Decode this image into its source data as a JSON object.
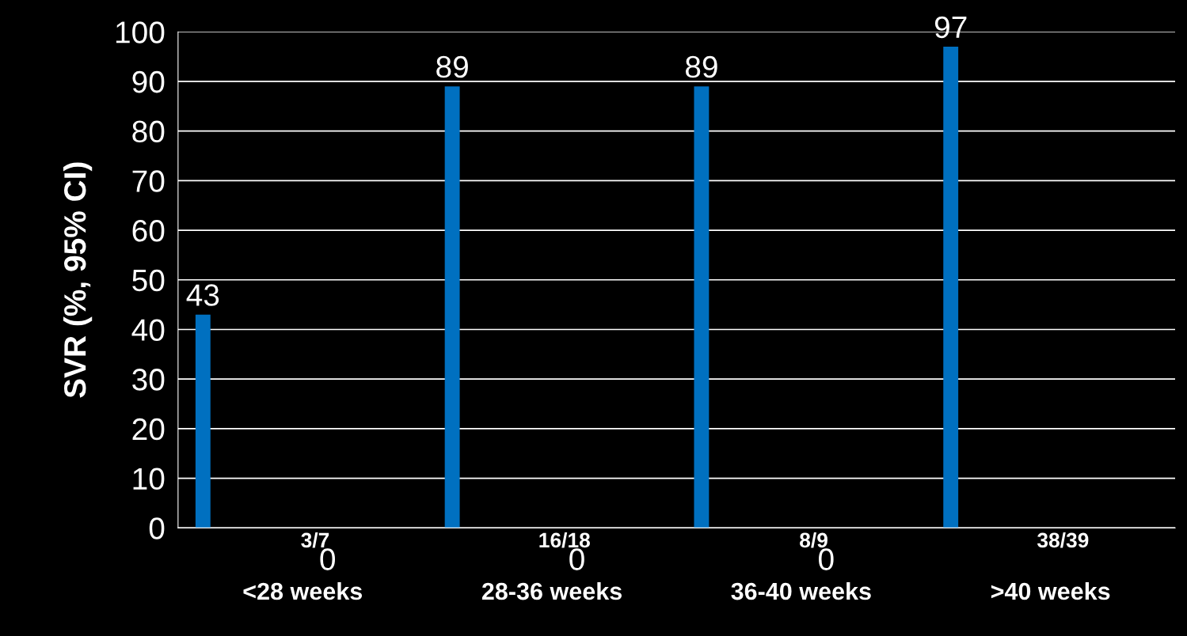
{
  "chart_data": {
    "type": "bar",
    "ylabel": "SVR (%, 95% CI)",
    "categories": [
      "<28 weeks",
      "28-36 weeks",
      "36-40 weeks",
      ">40 weeks"
    ],
    "series": [
      {
        "color": "#0070c0",
        "values": [
          43,
          89,
          89,
          97
        ],
        "value_labels": [
          "43",
          "89",
          "89",
          "97"
        ]
      },
      {
        "color": "#0070c0",
        "values": [
          0,
          0,
          0,
          0
        ],
        "value_labels": [
          "0",
          "0",
          "0",
          null
        ]
      }
    ],
    "annotations": [
      "3/7",
      "16/18",
      "8/9",
      "38/39"
    ],
    "ylim": [
      0,
      100
    ],
    "yticks": [
      0,
      10,
      20,
      30,
      40,
      50,
      60,
      70,
      80,
      90,
      100
    ],
    "grid": "y",
    "legend": false
  }
}
